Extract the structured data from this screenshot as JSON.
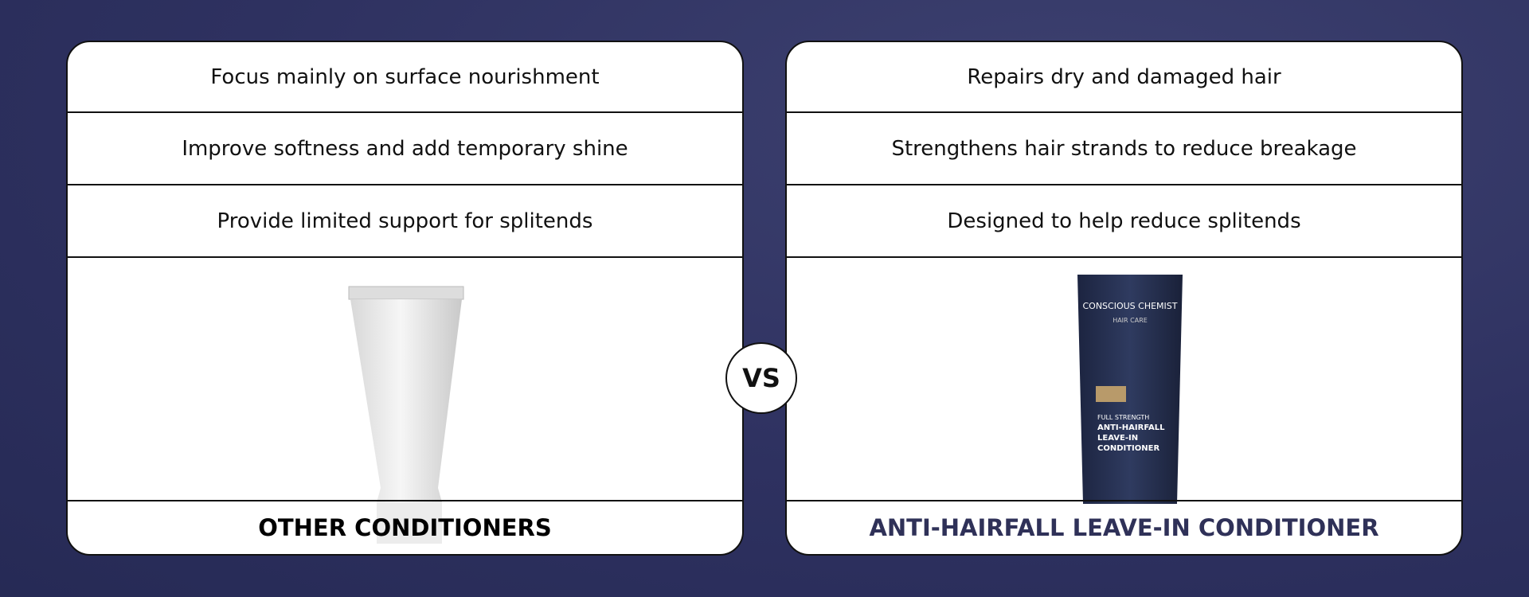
{
  "vs_badge": "VS",
  "comparison": {
    "left": {
      "points": [
        "Focus mainly on surface nourishment",
        "Improve softness and add temporary shine",
        "Provide limited support for splitends"
      ],
      "title": "OTHER CONDITIONERS"
    },
    "right": {
      "points": [
        "Repairs dry and damaged hair",
        "Strengthens hair strands to reduce breakage",
        "Designed to help reduce splitends"
      ],
      "title": "ANTI-HAIRFALL LEAVE-IN CONDITIONER"
    }
  },
  "product_label": {
    "brand": "CONSCIOUS CHEMIST",
    "line": "HAIR CARE",
    "strength": "FULL STRENGTH",
    "name": [
      "ANTI-HAIRFALL",
      "LEAVE-IN",
      "CONDITIONER"
    ]
  }
}
